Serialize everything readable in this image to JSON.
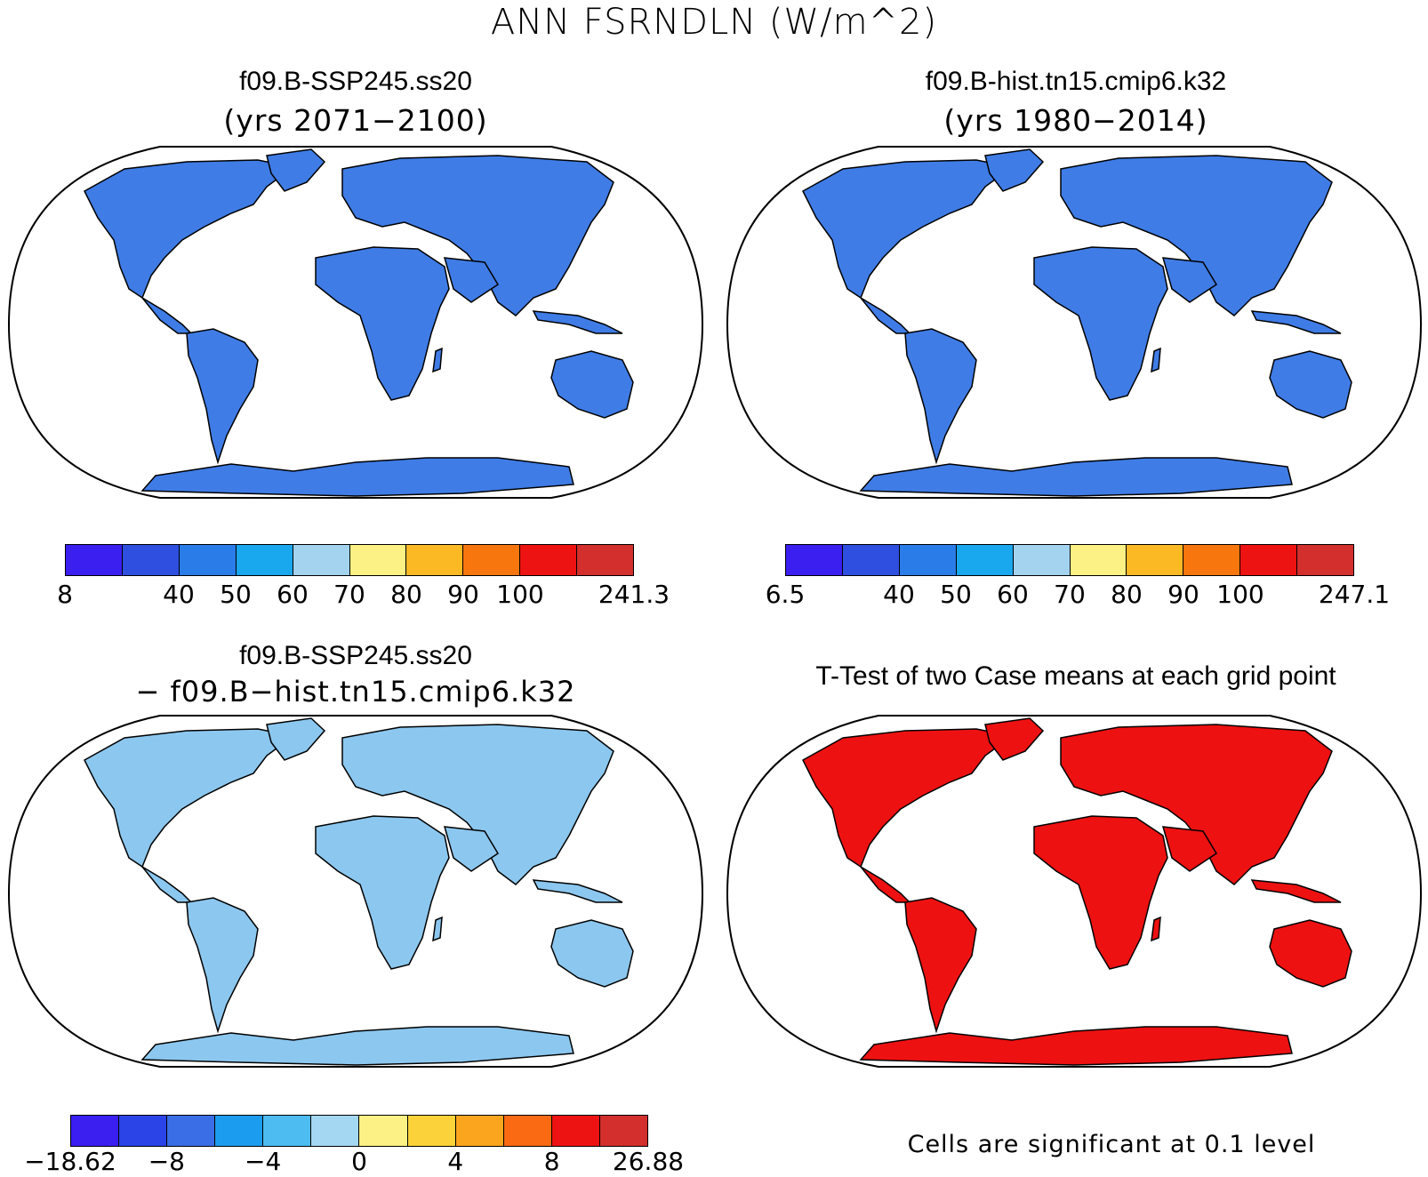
{
  "title": "ANN FSRNDLN (W/m^2)",
  "panels": [
    {
      "title": "f09.B-SSP245.ss20",
      "subtitle": "(yrs 2071−2100)"
    },
    {
      "title": "f09.B-hist.tn15.cmip6.k32",
      "subtitle": "(yrs 1980−2014)"
    },
    {
      "title": "f09.B-SSP245.ss20",
      "subtitle": "− f09.B−hist.tn15.cmip6.k32"
    },
    {
      "title": "T-Test of two Case means at each grid point",
      "subtitle": ""
    }
  ],
  "note": "Cells are significant at 0.1 level",
  "colorbars": [
    {
      "colors": [
        "#3a1ff0",
        "#2f4fe0",
        "#2a7de9",
        "#19a7ee",
        "#a3d3ef",
        "#fbf184",
        "#fbb924",
        "#f8760e",
        "#ed1312",
        "#d22f2d"
      ],
      "labels": [
        "8",
        "40",
        "50",
        "60",
        "70",
        "80",
        "90",
        "100",
        "241.3"
      ],
      "label_at_boundary": [
        0,
        2,
        3,
        4,
        5,
        6,
        7,
        8,
        10
      ]
    },
    {
      "colors": [
        "#3a1ff0",
        "#2f4fe0",
        "#2a7de9",
        "#19a7ee",
        "#a3d3ef",
        "#fbf184",
        "#fbb924",
        "#f8760e",
        "#ed1312",
        "#d22f2d"
      ],
      "labels": [
        "6.5",
        "40",
        "50",
        "60",
        "70",
        "80",
        "90",
        "100",
        "247.1"
      ],
      "label_at_boundary": [
        0,
        2,
        3,
        4,
        5,
        6,
        7,
        8,
        10
      ]
    },
    {
      "colors": [
        "#3a1ff0",
        "#2a44e8",
        "#3a6ee6",
        "#1c9cef",
        "#4cbcf1",
        "#a3d7f2",
        "#fbf184",
        "#fbd23a",
        "#fba51e",
        "#f96a12",
        "#ed1312",
        "#d22f2d"
      ],
      "labels": [
        "−18.62",
        "−8",
        "−4",
        "0",
        "4",
        "8",
        "26.88"
      ],
      "label_at_boundary": [
        0,
        2,
        4,
        6,
        8,
        10,
        12
      ]
    }
  ],
  "map_fill": {
    "panel1": "#3f7ce6",
    "panel2": "#3f7ce6",
    "panel3": "#8cc7ef",
    "panel4": "#ee1111"
  }
}
